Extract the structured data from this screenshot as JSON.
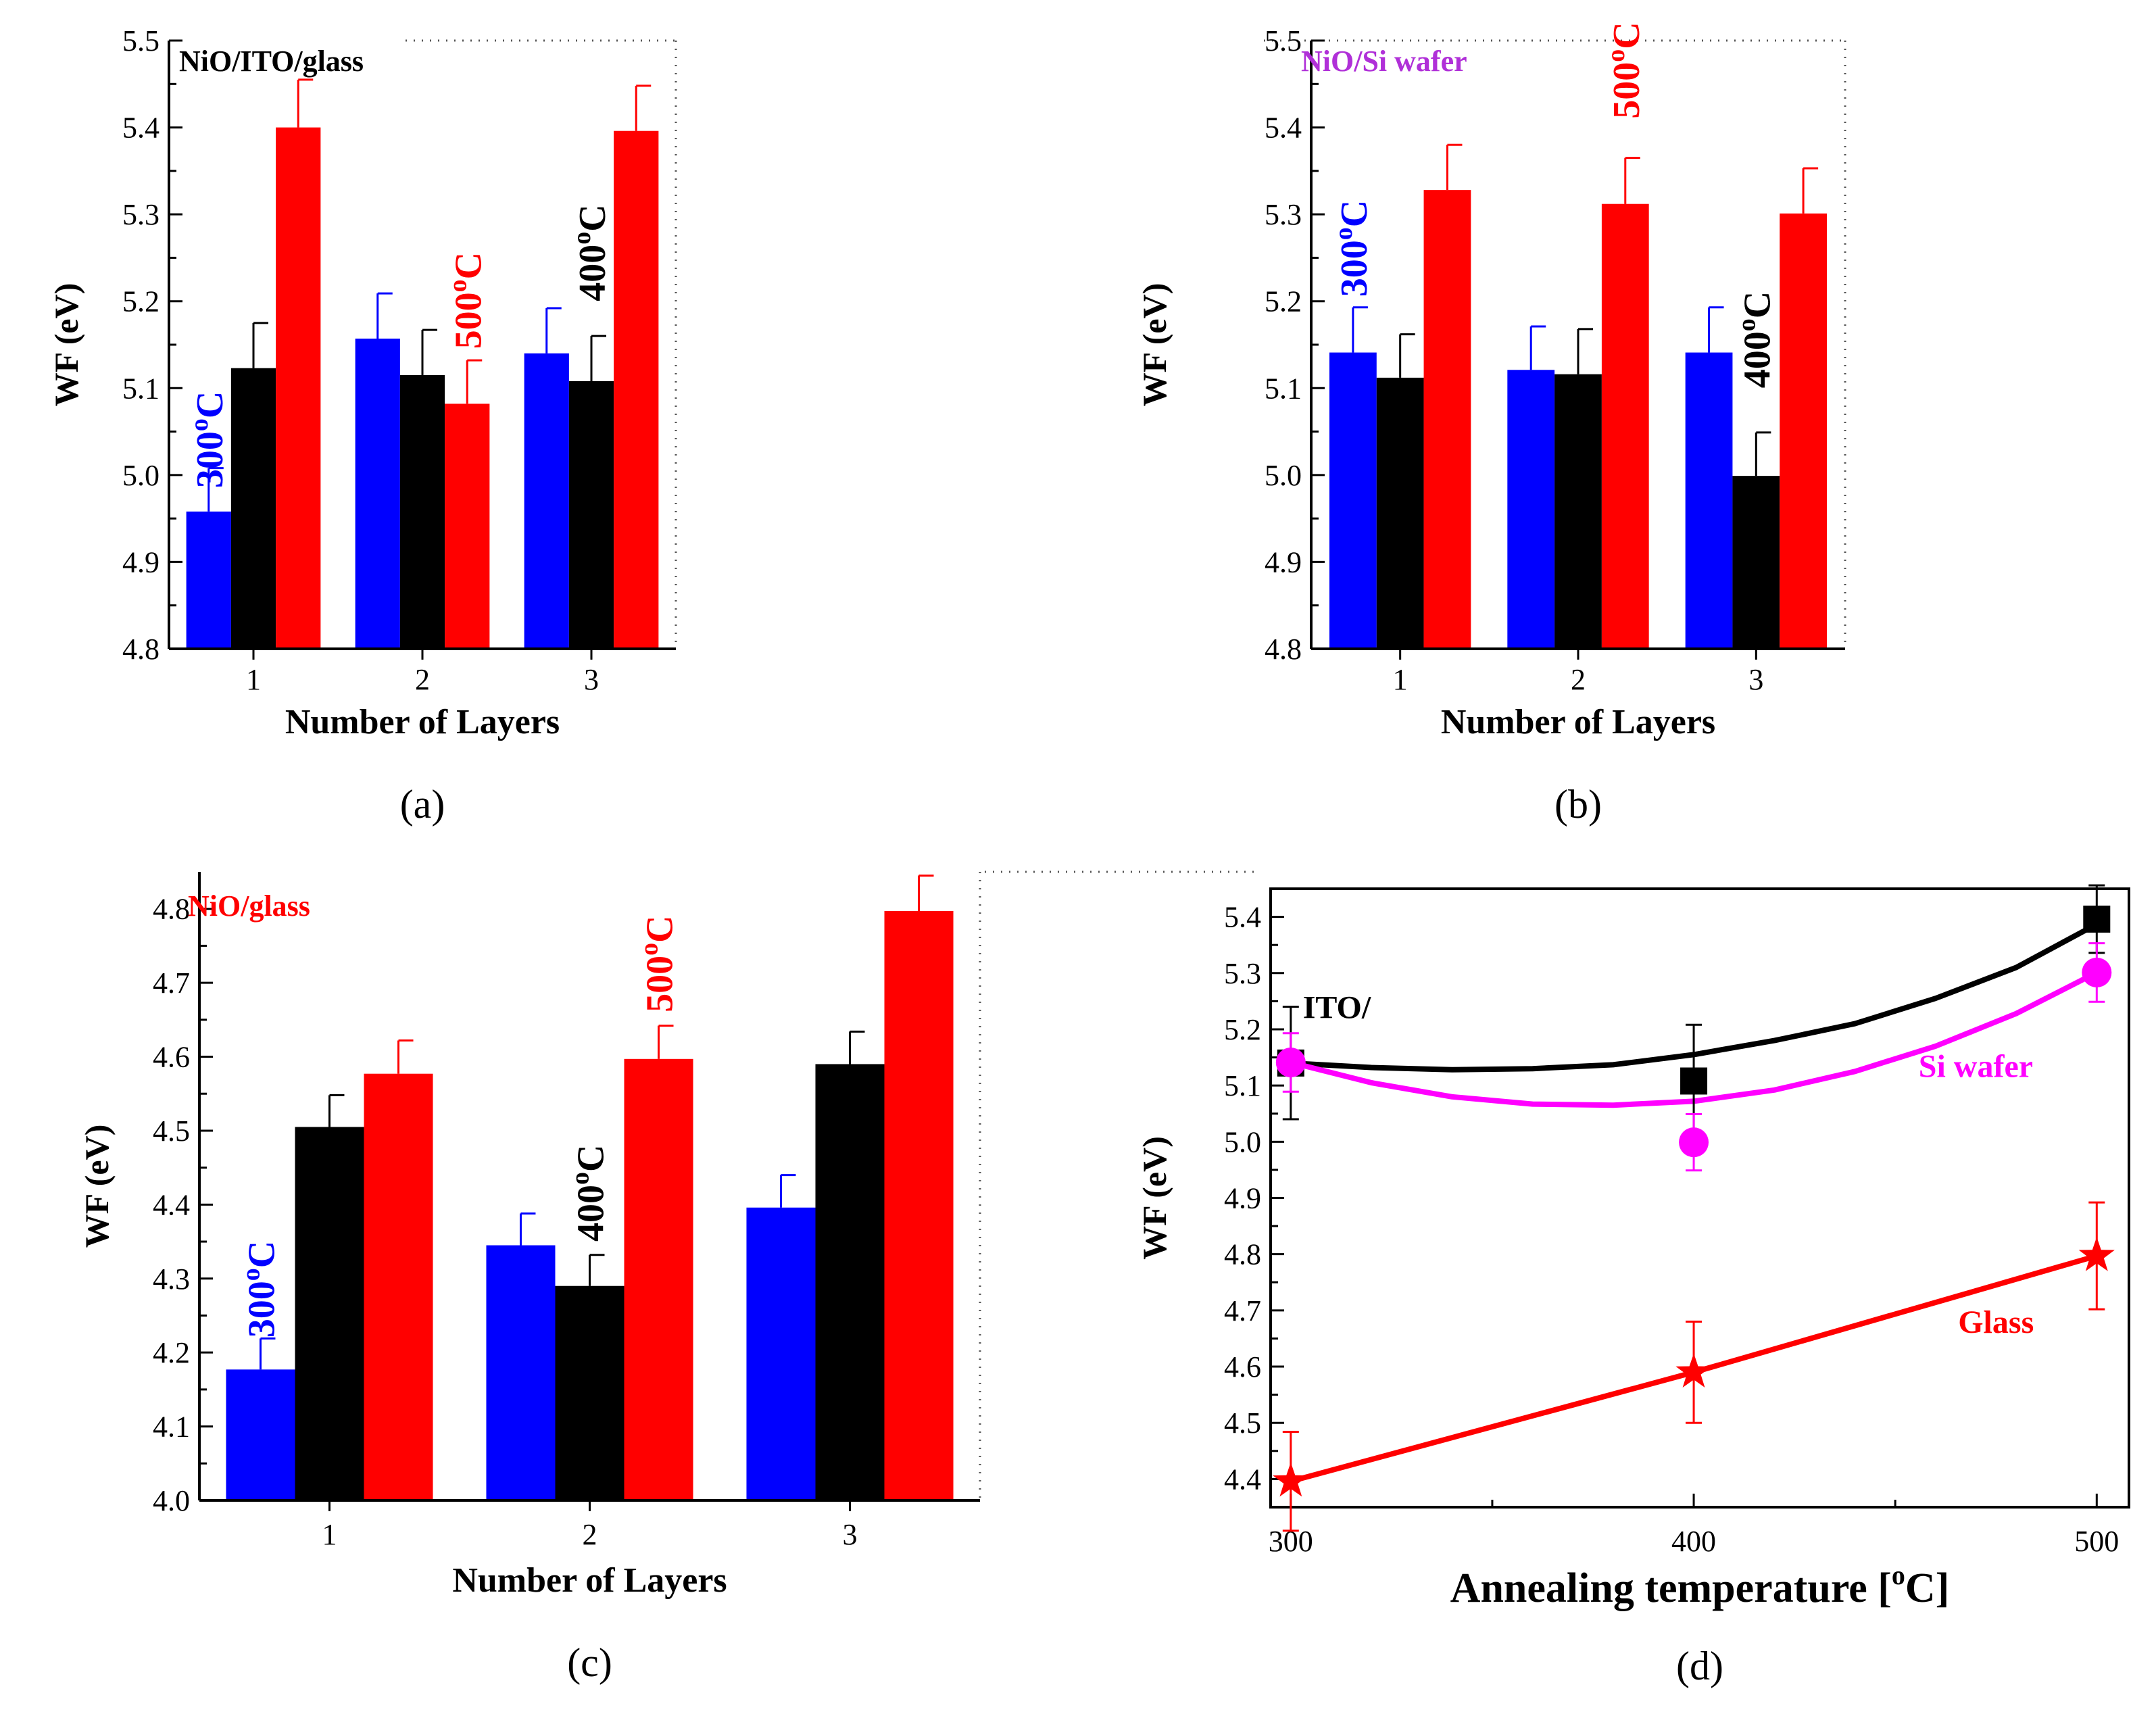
{
  "colors": {
    "blue": "#0000ff",
    "black": "#000000",
    "red": "#ff0000",
    "magenta": "#ff00ff",
    "violet": "#b030d8"
  },
  "chart_data": [
    {
      "id": "a",
      "type": "bar",
      "caption": "(a)",
      "title": "NiO/ITO/glass",
      "title_color": "#000000",
      "xlabel": "Number of Layers",
      "ylabel": "WF (eV)",
      "ylim": [
        4.8,
        5.5
      ],
      "yticks": [
        "4.8",
        "4.9",
        "5.0",
        "5.1",
        "5.2",
        "5.3",
        "5.4",
        "5.5"
      ],
      "categories": [
        "1",
        "2",
        "3"
      ],
      "series": [
        {
          "name": "300oC",
          "color": "#0000ff",
          "values": [
            4.958,
            5.157,
            5.14
          ],
          "errors": [
            0.05,
            0.052,
            0.052
          ]
        },
        {
          "name": "400oC",
          "color": "#000000",
          "values": [
            5.123,
            5.115,
            5.108
          ],
          "errors": [
            0.052,
            0.052,
            0.052
          ]
        },
        {
          "name": "500oC",
          "color": "#ff0000",
          "values": [
            5.4,
            5.082,
            5.396
          ],
          "errors": [
            0.055,
            0.05,
            0.052
          ]
        }
      ],
      "annotations": [
        {
          "base": "300",
          "sup": "o",
          "unit": "C",
          "color": "#0000ff",
          "x": 1,
          "y": 4.985,
          "offset": -1
        },
        {
          "base": "500",
          "sup": "o",
          "unit": "C",
          "color": "#ff0000",
          "x": 2,
          "y": 5.145,
          "offset": 1
        },
        {
          "base": "400",
          "sup": "o",
          "unit": "C",
          "color": "#000000",
          "x": 3,
          "y": 5.2,
          "offset": 0
        }
      ]
    },
    {
      "id": "b",
      "type": "bar",
      "caption": "(b)",
      "title": "NiO/Si wafer",
      "title_color": "#b030d8",
      "xlabel": "Number of Layers",
      "ylabel": "WF (eV)",
      "ylim": [
        4.8,
        5.5
      ],
      "yticks": [
        "4.8",
        "4.9",
        "5.0",
        "5.1",
        "5.2",
        "5.3",
        "5.4",
        "5.5"
      ],
      "categories": [
        "1",
        "2",
        "3"
      ],
      "series": [
        {
          "name": "300oC",
          "color": "#0000ff",
          "values": [
            5.141,
            5.121,
            5.141
          ],
          "errors": [
            0.052,
            0.05,
            0.052
          ]
        },
        {
          "name": "400oC",
          "color": "#000000",
          "values": [
            5.112,
            5.116,
            4.999
          ],
          "errors": [
            0.05,
            0.052,
            0.05
          ]
        },
        {
          "name": "500oC",
          "color": "#ff0000",
          "values": [
            5.328,
            5.312,
            5.301
          ],
          "errors": [
            0.052,
            0.053,
            0.052
          ]
        }
      ],
      "annotations": [
        {
          "base": "300",
          "sup": "o",
          "unit": "C",
          "color": "#0000ff",
          "x": 1,
          "y": 5.205,
          "offset": -1
        },
        {
          "base": "500",
          "sup": "o",
          "unit": "C",
          "color": "#ff0000",
          "x": 2,
          "y": 5.41,
          "offset": 1
        },
        {
          "base": "400",
          "sup": "o",
          "unit": "C",
          "color": "#000000",
          "x": 3,
          "y": 5.1,
          "offset": 0
        }
      ]
    },
    {
      "id": "c",
      "type": "bar",
      "caption": "(c)",
      "title": "NiO/glass",
      "title_color": "#ff0000",
      "xlabel": "Number of Layers",
      "ylabel": "WF (eV)",
      "ylim": [
        4.0,
        4.85
      ],
      "yticks": [
        "4.0",
        "4.1",
        "4.2",
        "4.3",
        "4.4",
        "4.5",
        "4.6",
        "4.7",
        "4.8"
      ],
      "categories": [
        "1",
        "2",
        "3"
      ],
      "series": [
        {
          "name": "300oC",
          "color": "#0000ff",
          "values": [
            4.177,
            4.345,
            4.396
          ],
          "errors": [
            0.042,
            0.043,
            0.044
          ]
        },
        {
          "name": "400oC",
          "color": "#000000",
          "values": [
            4.505,
            4.29,
            4.59
          ],
          "errors": [
            0.043,
            0.042,
            0.044
          ]
        },
        {
          "name": "500oC",
          "color": "#ff0000",
          "values": [
            4.577,
            4.597,
            4.797
          ],
          "errors": [
            0.045,
            0.045,
            0.048
          ]
        }
      ],
      "annotations": [
        {
          "base": "300",
          "sup": "o",
          "unit": "C",
          "color": "#0000ff",
          "x": 1,
          "y": 4.22,
          "offset": -1
        },
        {
          "base": "400",
          "sup": "o",
          "unit": "C",
          "color": "#000000",
          "x": 2,
          "y": 4.35,
          "offset": 0
        },
        {
          "base": "500",
          "sup": "o",
          "unit": "C",
          "color": "#ff0000",
          "x": 2,
          "y": 4.66,
          "offset": 1
        }
      ]
    },
    {
      "id": "d",
      "type": "scatter",
      "caption": "(d)",
      "xlabel": "Annealing temperature [",
      "xlabel_sup": "o",
      "xlabel_unit": "C]",
      "ylabel": "WF (eV)",
      "xlim": [
        295,
        508
      ],
      "ylim": [
        4.35,
        5.45
      ],
      "xticks": [
        "300",
        "400",
        "500"
      ],
      "yticks": [
        "4.4",
        "4.5",
        "4.6",
        "4.7",
        "4.8",
        "4.9",
        "5.0",
        "5.1",
        "5.2",
        "5.3",
        "5.4"
      ],
      "series": [
        {
          "name": "ITO/",
          "color": "#000000",
          "marker": "square",
          "x": [
            300,
            400,
            500
          ],
          "y": [
            5.14,
            5.108,
            5.396
          ],
          "errors": [
            0.1,
            0.1,
            0.06
          ]
        },
        {
          "name": "Si wafer",
          "color": "#ff00ff",
          "marker": "circle",
          "x": [
            300,
            400,
            500
          ],
          "y": [
            5.141,
            4.999,
            5.301
          ],
          "errors": [
            0.052,
            0.05,
            0.052
          ]
        },
        {
          "name": "Glass",
          "color": "#ff0000",
          "marker": "star",
          "x": [
            300,
            400,
            500
          ],
          "y": [
            4.396,
            4.59,
            4.797
          ],
          "errors": [
            0.088,
            0.09,
            0.095
          ]
        }
      ],
      "fits": [
        {
          "series": "ITO/",
          "color": "#000000",
          "points": [
            [
              300,
              5.14
            ],
            [
              320,
              5.132
            ],
            [
              340,
              5.128
            ],
            [
              360,
              5.13
            ],
            [
              380,
              5.137
            ],
            [
              400,
              5.155
            ],
            [
              420,
              5.18
            ],
            [
              440,
              5.21
            ],
            [
              460,
              5.255
            ],
            [
              480,
              5.31
            ],
            [
              500,
              5.387
            ]
          ]
        },
        {
          "series": "Si wafer",
          "color": "#ff00ff",
          "points": [
            [
              300,
              5.141
            ],
            [
              320,
              5.105
            ],
            [
              340,
              5.08
            ],
            [
              360,
              5.067
            ],
            [
              380,
              5.065
            ],
            [
              400,
              5.072
            ],
            [
              420,
              5.092
            ],
            [
              440,
              5.125
            ],
            [
              460,
              5.17
            ],
            [
              480,
              5.228
            ],
            [
              500,
              5.301
            ]
          ]
        },
        {
          "series": "Glass",
          "color": "#ff0000",
          "points": [
            [
              300,
              4.396
            ],
            [
              400,
              4.59
            ],
            [
              500,
              4.797
            ]
          ]
        }
      ],
      "labels": [
        {
          "text": "ITO/",
          "color": "#000000",
          "x": 303,
          "y": 5.22
        },
        {
          "text": "Si wafer",
          "color": "#ff00ff",
          "x": 470,
          "y": 5.115
        },
        {
          "text": "Glass",
          "color": "#ff0000",
          "x": 475,
          "y": 4.66
        }
      ]
    }
  ]
}
